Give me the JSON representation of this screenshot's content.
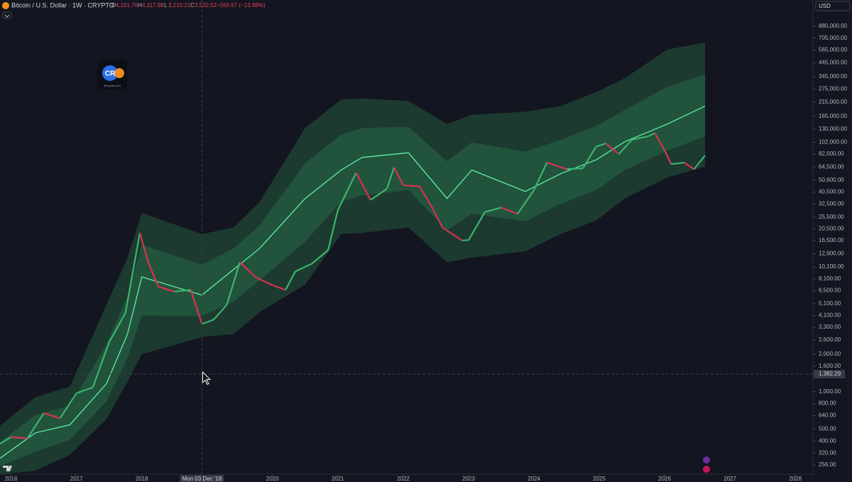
{
  "header": {
    "symbol": "Bitcoin / U.S. Dollar · 1W · CRYPTO",
    "ohlc": [
      {
        "key": "O",
        "value": "4,101.76"
      },
      {
        "key": "H",
        "value": "4,117.98"
      },
      {
        "key": "L",
        "value": "3,210.21"
      },
      {
        "key": "C",
        "value": "3,532.52"
      }
    ],
    "change": "−569.67 (−13.88%)",
    "currency": "USD",
    "watermark": "@cryptorover"
  },
  "chart_data": {
    "type": "line",
    "log_scale": true,
    "xlim": [
      2015.83,
      2028.27
    ],
    "xticks": [
      2016,
      2017,
      2018,
      2020,
      2021,
      2022,
      2023,
      2024,
      2025,
      2026,
      2027,
      2028
    ],
    "ylim": [
      216,
      1430000
    ],
    "yticks": [
      {
        "value": 880000,
        "label": "880,000.00"
      },
      {
        "value": 705000,
        "label": "705,000.00"
      },
      {
        "value": 565000,
        "label": "565,000.00"
      },
      {
        "value": 445000,
        "label": "445,000.00"
      },
      {
        "value": 345000,
        "label": "345,000.00"
      },
      {
        "value": 275000,
        "label": "275,000.00"
      },
      {
        "value": 215000,
        "label": "215,000.00"
      },
      {
        "value": 165000,
        "label": "165,000.00"
      },
      {
        "value": 130000,
        "label": "130,000.00"
      },
      {
        "value": 102000,
        "label": "102,000.00"
      },
      {
        "value": 82000,
        "label": "82,000.00"
      },
      {
        "value": 64500,
        "label": "64,500.00"
      },
      {
        "value": 50600,
        "label": "50,600.00"
      },
      {
        "value": 40500,
        "label": "40,500.00"
      },
      {
        "value": 32500,
        "label": "32,500.00"
      },
      {
        "value": 25500,
        "label": "25,500.00"
      },
      {
        "value": 20500,
        "label": "20,500.00"
      },
      {
        "value": 16500,
        "label": "16,500.00"
      },
      {
        "value": 12900,
        "label": "12,900.00"
      },
      {
        "value": 10100,
        "label": "10,100.00"
      },
      {
        "value": 8100,
        "label": "8,100.00"
      },
      {
        "value": 6500,
        "label": "6,500.00"
      },
      {
        "value": 5100,
        "label": "5,100.00"
      },
      {
        "value": 4100,
        "label": "4,100.00"
      },
      {
        "value": 3300,
        "label": "3,300.00"
      },
      {
        "value": 2600,
        "label": "2,600.00"
      },
      {
        "value": 2000,
        "label": "2,000.00"
      },
      {
        "value": 1600,
        "label": "1,600.00"
      },
      {
        "value": 1000,
        "label": "1,000.00"
      },
      {
        "value": 800,
        "label": "800.00"
      },
      {
        "value": 640,
        "label": "640.00"
      },
      {
        "value": 500,
        "label": "500.00"
      },
      {
        "value": 400,
        "label": "400.00"
      },
      {
        "value": 320,
        "label": "320.00"
      },
      {
        "value": 256,
        "label": "256.00"
      }
    ],
    "crosshair": {
      "x": {
        "value": 2018.92,
        "label": "Mon 03 Dec '18"
      },
      "y": {
        "value": 1382.29,
        "label": "1,382.29"
      }
    },
    "bands": [
      {
        "color": "#1c3a30",
        "x": [
          2015.83,
          2016.37,
          2016.9,
          2017.46,
          2017.78,
          2018.0,
          2018.92,
          2019.4,
          2019.8,
          2020.5,
          2021.05,
          2021.37,
          2022.08,
          2022.67,
          2023.05,
          2023.87,
          2024.41,
          2024.96,
          2025.39,
          2026.04,
          2026.62
        ],
        "upper": [
          530,
          900,
          1100,
          5000,
          12000,
          27500,
          18600,
          21000,
          33500,
          133000,
          226000,
          230000,
          220000,
          143000,
          170000,
          180000,
          200000,
          260000,
          335000,
          570000,
          650000
        ],
        "lower": [
          215,
          230,
          310,
          600,
          1200,
          2000,
          2750,
          2900,
          4350,
          7300,
          18600,
          19000,
          21000,
          11000,
          12000,
          13500,
          18600,
          24000,
          36000,
          53000,
          65000
        ]
      },
      {
        "color": "#22533d",
        "x": [
          2015.83,
          2016.37,
          2016.9,
          2017.46,
          2017.78,
          2018.0,
          2018.92,
          2019.4,
          2019.8,
          2020.5,
          2021.05,
          2021.37,
          2022.08,
          2022.67,
          2023.05,
          2023.87,
          2024.41,
          2024.96,
          2025.39,
          2026.04,
          2026.62
        ],
        "upper": [
          392,
          647,
          771,
          2408,
          5899,
          15200,
          10560,
          14200,
          21800,
          69200,
          117400,
          133000,
          136000,
          71700,
          101800,
          85900,
          106800,
          138700,
          185700,
          285500,
          360500
        ],
        "lower": [
          250,
          327,
          409,
          834,
          1865,
          4100,
          4060,
          5280,
          7860,
          16200,
          33700,
          38200,
          42000,
          19900,
          27100,
          23500,
          32600,
          42100,
          60900,
          87100,
          114000
        ]
      }
    ],
    "series": [
      {
        "color": "#5ff0a6",
        "x": [
          2015.83,
          2016.37,
          2016.9,
          2017.46,
          2017.78,
          2018.0,
          2018.92,
          2019.4,
          2019.8,
          2020.5,
          2021.05,
          2021.37,
          2022.08,
          2022.67,
          2023.05,
          2023.87,
          2024.41,
          2024.96,
          2025.39,
          2026.04,
          2026.62
        ],
        "values": [
          290,
          465,
          540,
          1160,
          2900,
          8400,
          6000,
          9600,
          14200,
          36000,
          61000,
          77000,
          84000,
          36000,
          61000,
          41000,
          57000,
          74000,
          103000,
          143000,
          200000
        ]
      },
      {
        "color": "#3cb46c",
        "down_color": "#d8324f",
        "x": [
          2015.83,
          2016.0,
          2016.25,
          2016.5,
          2016.75,
          2017.0,
          2017.25,
          2017.5,
          2017.75,
          2017.97,
          2018.1,
          2018.25,
          2018.5,
          2018.75,
          2018.92,
          2019.1,
          2019.3,
          2019.5,
          2019.75,
          2020.0,
          2020.2,
          2020.35,
          2020.6,
          2020.85,
          2021.0,
          2021.28,
          2021.5,
          2021.75,
          2021.86,
          2022.0,
          2022.25,
          2022.45,
          2022.6,
          2022.9,
          2023.0,
          2023.25,
          2023.5,
          2023.75,
          2024.0,
          2024.2,
          2024.5,
          2024.75,
          2024.95,
          2025.1,
          2025.3,
          2025.5,
          2025.75,
          2025.85,
          2026.0,
          2026.1,
          2026.3,
          2026.45,
          2026.62
        ],
        "values": [
          380,
          430,
          420,
          670,
          610,
          970,
          1080,
          2500,
          4300,
          19000,
          11000,
          7000,
          6400,
          6600,
          3500,
          3800,
          5000,
          11000,
          8300,
          7200,
          6600,
          9300,
          10700,
          13800,
          29000,
          58000,
          35000,
          43000,
          64000,
          46000,
          45000,
          30000,
          21000,
          16500,
          16600,
          28000,
          30400,
          27000,
          42000,
          70000,
          62000,
          63000,
          94000,
          100000,
          82000,
          107000,
          114000,
          121000,
          88000,
          68000,
          70000,
          62000,
          80000
        ]
      }
    ]
  }
}
